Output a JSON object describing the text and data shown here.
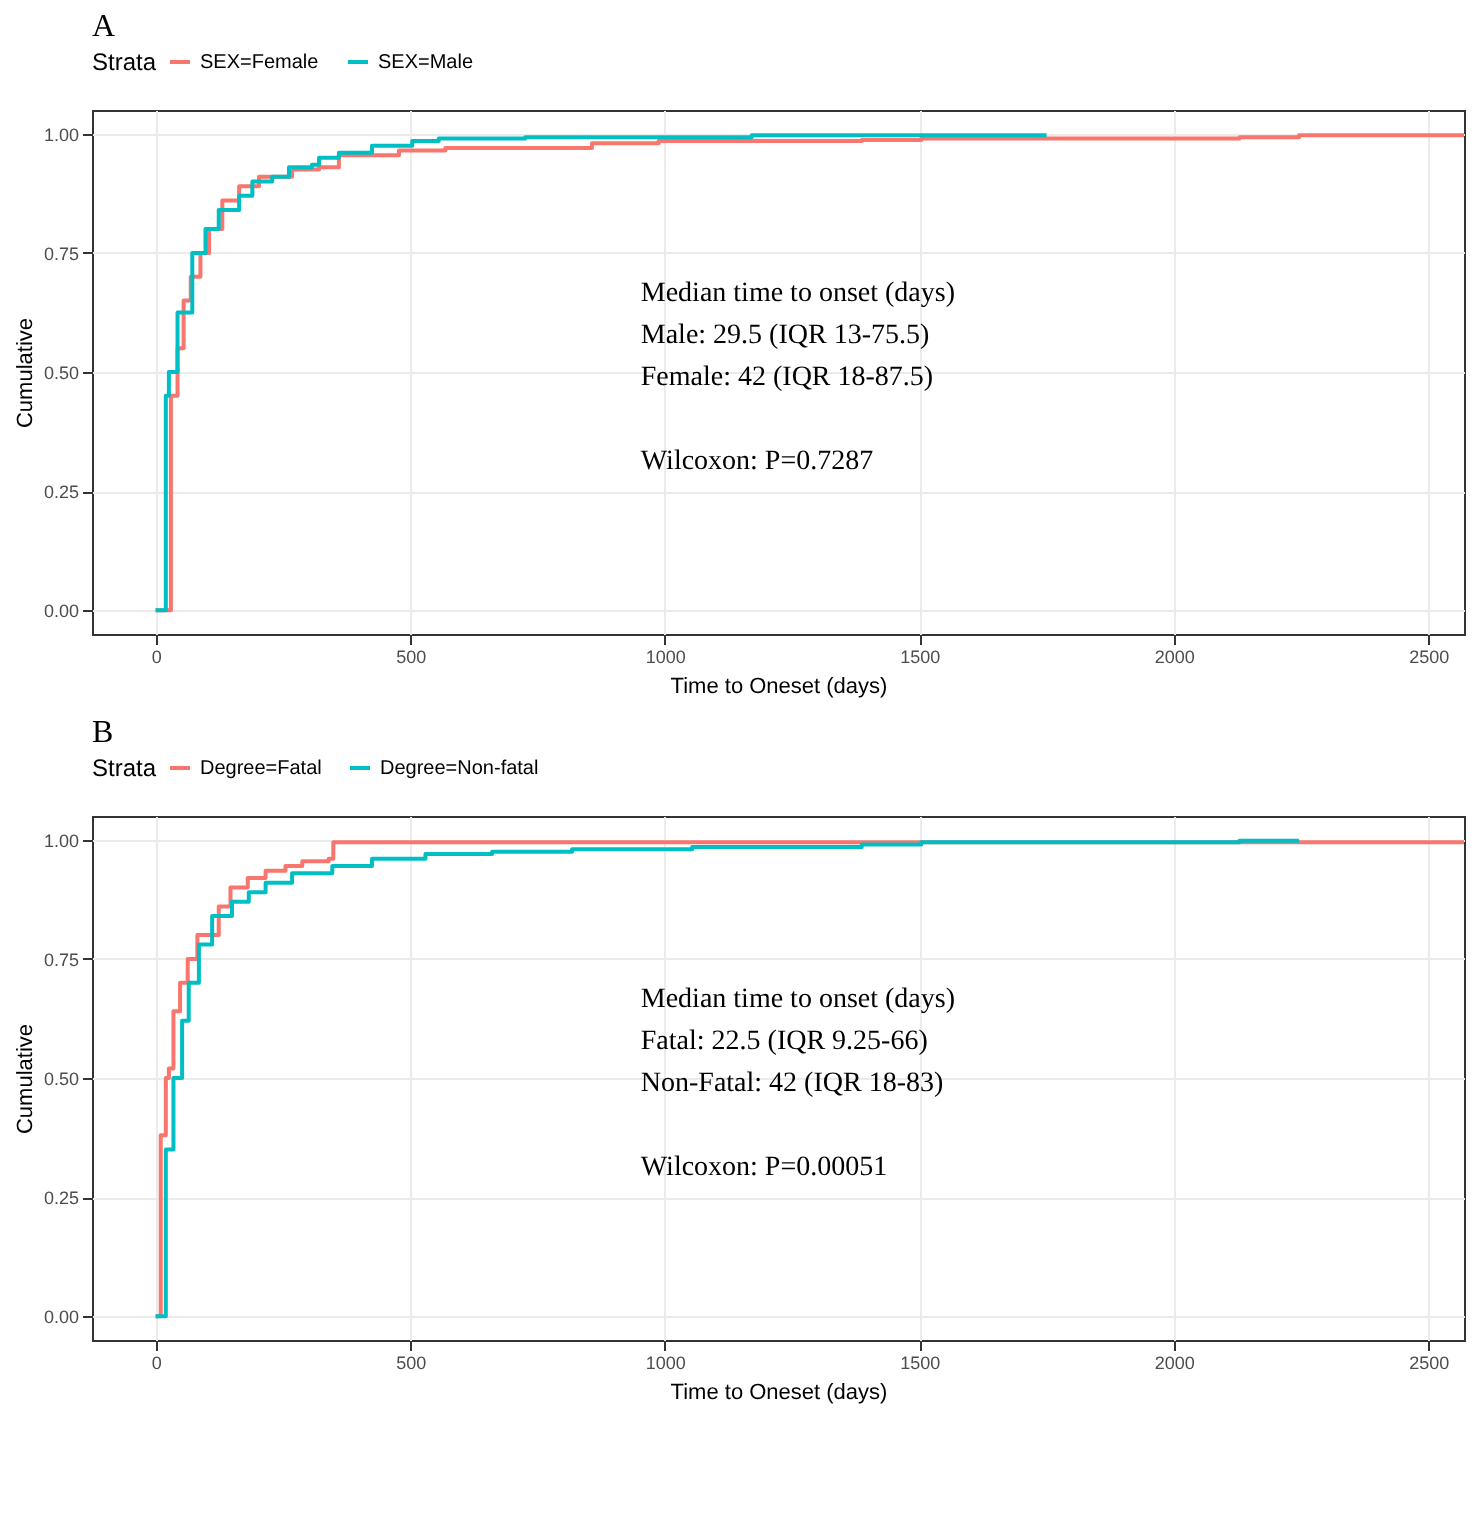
{
  "chart_data": [
    {
      "type": "step",
      "title": "A",
      "xlabel": "Time to Oneset (days)",
      "ylabel": "Cumulative",
      "legend_title": "Strata",
      "legend": "top",
      "grid": true,
      "xlim": [
        -125,
        2570
      ],
      "ylim": [
        -0.05,
        1.05
      ],
      "xticks": [
        0,
        500,
        1000,
        1500,
        2000,
        2500
      ],
      "yticks": [
        {
          "value": 0,
          "label": "0.00"
        },
        {
          "value": 0.25,
          "label": "0.25"
        },
        {
          "value": 0.5,
          "label": "0.50"
        },
        {
          "value": 0.75,
          "label": "0.75"
        },
        {
          "value": 1,
          "label": "1.00"
        }
      ],
      "annotations": [
        "Median time to onset (days)",
        "Male: 29.5 (IQR 13-75.5)",
        "Female: 42 (IQR 18-87.5)",
        "Wilcoxon: P=0.7287"
      ],
      "series": [
        {
          "name": "SEX=Female",
          "color": "#f8766d",
          "x": [
            0,
            30,
            43,
            55,
            69,
            88,
            105,
            131,
            164,
            203,
            268,
            321,
            360,
            478,
            569,
            857,
            988,
            1387,
            1504,
            2129,
            2246,
            2570
          ],
          "values": [
            0,
            0.45,
            0.55,
            0.65,
            0.7,
            0.75,
            0.8,
            0.86,
            0.89,
            0.91,
            0.925,
            0.93,
            0.955,
            0.965,
            0.97,
            0.98,
            0.985,
            0.987,
            0.99,
            0.993,
            0.997,
            0.997
          ]
        },
        {
          "name": "SEX=Male",
          "color": "#00bfc4",
          "x": [
            0,
            20,
            26,
            43,
            72,
            98,
            124,
            164,
            190,
            229,
            262,
            307,
            321,
            360,
            425,
            504,
            556,
            726,
            1171,
            1750
          ],
          "values": [
            0,
            0.45,
            0.5,
            0.625,
            0.75,
            0.8,
            0.84,
            0.87,
            0.9,
            0.91,
            0.93,
            0.935,
            0.95,
            0.96,
            0.975,
            0.985,
            0.99,
            0.993,
            0.997,
            0.997
          ]
        }
      ]
    },
    {
      "type": "step",
      "title": "B",
      "xlabel": "Time to Oneset (days)",
      "ylabel": "Cumulative",
      "legend_title": "Strata",
      "legend": "top",
      "grid": true,
      "xlim": [
        -125,
        2570
      ],
      "ylim": [
        -0.05,
        1.05
      ],
      "xticks": [
        0,
        500,
        1000,
        1500,
        2000,
        2500
      ],
      "yticks": [
        {
          "value": 0,
          "label": "0.00"
        },
        {
          "value": 0.25,
          "label": "0.25"
        },
        {
          "value": 0.5,
          "label": "0.50"
        },
        {
          "value": 0.75,
          "label": "0.75"
        },
        {
          "value": 1,
          "label": "1.00"
        }
      ],
      "annotations": [
        "Median time to onset (days)",
        "Fatal: 22.5 (IQR 9.25-66)",
        "Non-Fatal: 42 (IQR 18-83)",
        "Wilcoxon: P=0.00051"
      ],
      "series": [
        {
          "name": "Degree=Fatal",
          "color": "#f8766d",
          "x": [
            0,
            10,
            20,
            26,
            35,
            48,
            63,
            82,
            124,
            147,
            181,
            216,
            255,
            288,
            340,
            349,
            2570
          ],
          "values": [
            0,
            0.38,
            0.5,
            0.52,
            0.64,
            0.7,
            0.75,
            0.8,
            0.86,
            0.9,
            0.92,
            0.935,
            0.945,
            0.955,
            0.96,
            0.995,
            0.995
          ]
        },
        {
          "name": "Degree=Non-fatal",
          "color": "#00bfc4",
          "x": [
            0,
            20,
            35,
            52,
            65,
            85,
            111,
            150,
            183,
            216,
            268,
            347,
            425,
            530,
            661,
            818,
            1054,
            1387,
            1504,
            2129,
            2246
          ],
          "values": [
            0,
            0.35,
            0.5,
            0.62,
            0.7,
            0.78,
            0.84,
            0.87,
            0.89,
            0.91,
            0.93,
            0.945,
            0.96,
            0.97,
            0.975,
            0.98,
            0.985,
            0.99,
            0.995,
            0.998,
            0.998
          ]
        }
      ]
    }
  ]
}
